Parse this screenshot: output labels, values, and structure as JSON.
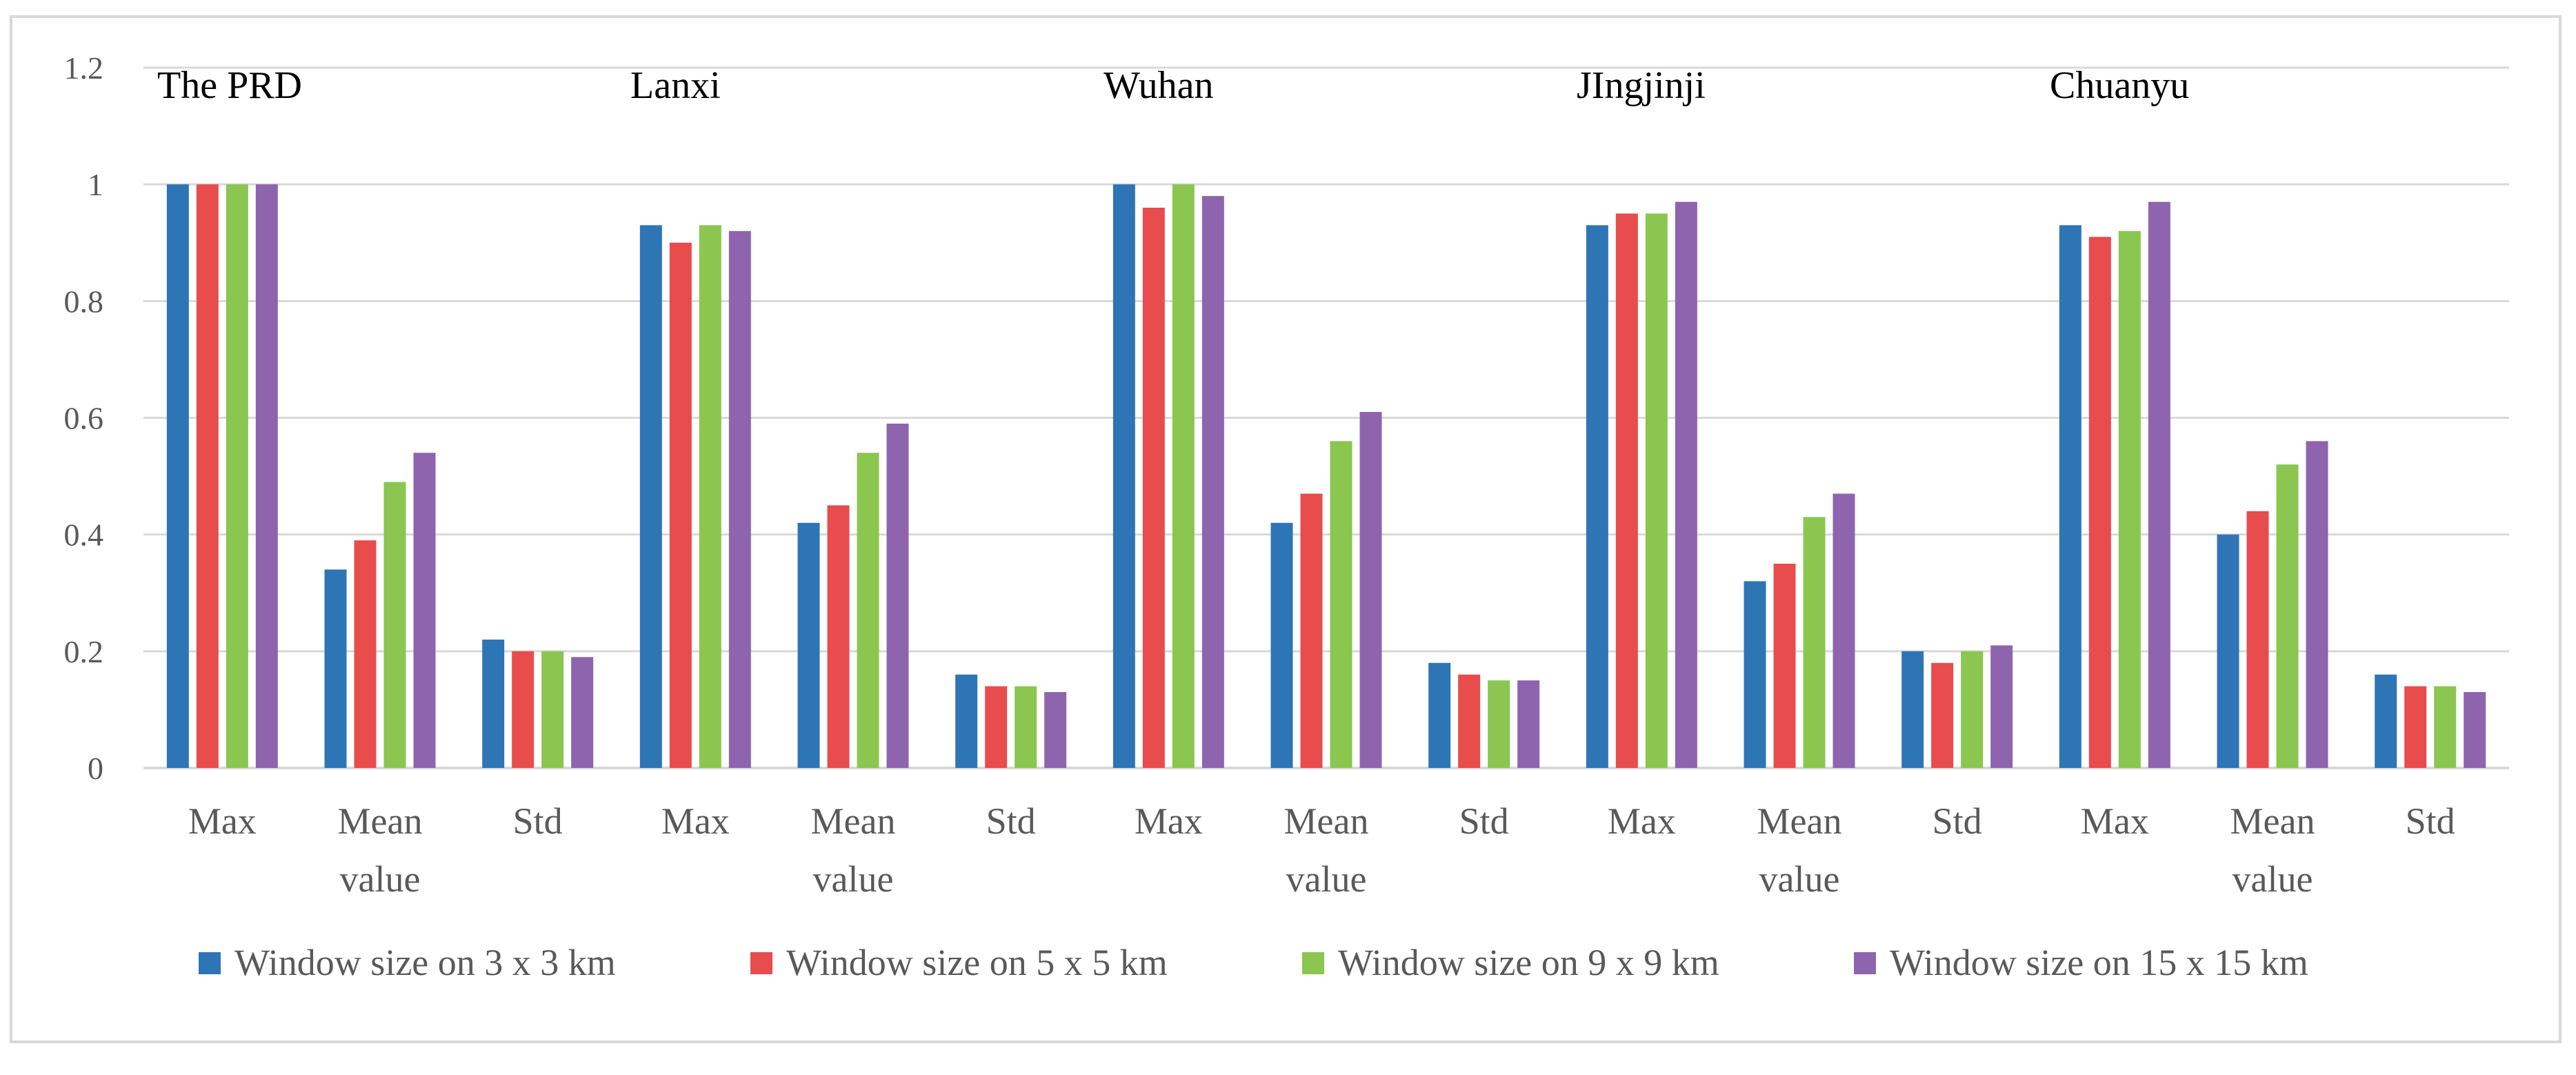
{
  "chart_data": {
    "type": "bar",
    "ylim": [
      0,
      1.2
    ],
    "y_ticks": [
      "0",
      "0.2",
      "0.4",
      "0.6",
      "0.8",
      "1",
      "1.2"
    ],
    "grid": true,
    "legend_position": "bottom",
    "groups": [
      "The PRD",
      "Lanxi",
      "Wuhan",
      "JIngjinji",
      "Chuanyu"
    ],
    "category_lines": [
      [
        "Max"
      ],
      [
        "Mean",
        "value"
      ],
      [
        "Std"
      ]
    ],
    "categories": [
      "The PRD Max",
      "The PRD Mean value",
      "The PRD Std",
      "Lanxi Max",
      "Lanxi Mean value",
      "Lanxi Std",
      "Wuhan Max",
      "Wuhan Mean value",
      "Wuhan Std",
      "JIngjinji Max",
      "JIngjinji Mean value",
      "JIngjinji Std",
      "Chuanyu Max",
      "Chuanyu Mean value",
      "Chuanyu Std"
    ],
    "series": [
      {
        "name": "Window size on 3 x 3 km",
        "color": "#2e75b6",
        "values": [
          1.0,
          0.34,
          0.22,
          0.93,
          0.42,
          0.16,
          1.0,
          0.42,
          0.18,
          0.93,
          0.32,
          0.2,
          0.93,
          0.4,
          0.16
        ]
      },
      {
        "name": "Window size on 5 x 5 km",
        "color": "#e84c4c",
        "values": [
          1.0,
          0.39,
          0.2,
          0.9,
          0.45,
          0.14,
          0.96,
          0.47,
          0.16,
          0.95,
          0.35,
          0.18,
          0.91,
          0.44,
          0.14
        ]
      },
      {
        "name": "Window size on 9 x 9 km",
        "color": "#8ac650",
        "values": [
          1.0,
          0.49,
          0.2,
          0.93,
          0.54,
          0.14,
          1.0,
          0.56,
          0.15,
          0.95,
          0.43,
          0.2,
          0.92,
          0.52,
          0.14
        ]
      },
      {
        "name": "Window size on 15 x 15 km",
        "color": "#8e64ae",
        "values": [
          1.0,
          0.54,
          0.19,
          0.92,
          0.59,
          0.13,
          0.98,
          0.61,
          0.15,
          0.97,
          0.47,
          0.21,
          0.97,
          0.56,
          0.13
        ]
      }
    ]
  }
}
